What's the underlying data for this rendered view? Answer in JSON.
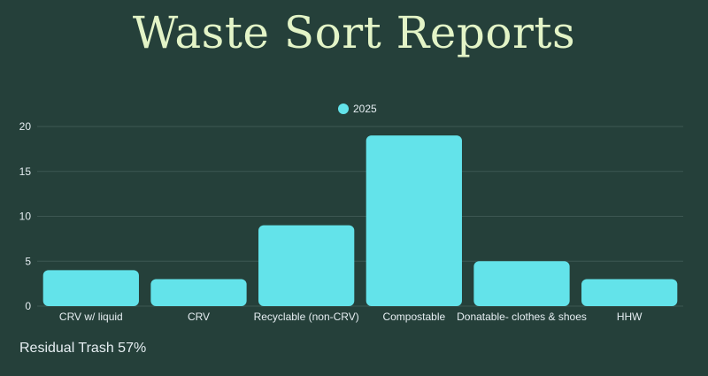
{
  "header": {
    "title": "Waste Sort Reports"
  },
  "colors": {
    "background": "#25403a",
    "bar": "#63e3ea",
    "title": "#e3f4c7",
    "grid": "#3d5752",
    "axis_text": "#e6eef2"
  },
  "footer": {
    "residual_text": "Residual Trash 57%"
  },
  "chart_data": {
    "type": "bar",
    "categories": [
      "CRV w/ liquid",
      "CRV",
      "Recyclable (non-CRV)",
      "Compostable",
      "Donatable- clothes & shoes",
      "HHW"
    ],
    "series": [
      {
        "name": "2025",
        "values": [
          4,
          3,
          9,
          19,
          5,
          3
        ]
      }
    ],
    "yticks": [
      "0",
      "5",
      "10",
      "15",
      "20"
    ],
    "ylim": [
      0,
      20
    ],
    "grid": true,
    "legend": "top-center"
  }
}
